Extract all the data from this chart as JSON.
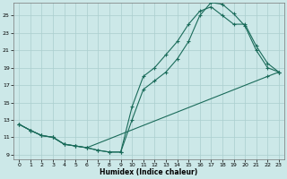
{
  "xlabel": "Humidex (Indice chaleur)",
  "bg_color": "#cce8e8",
  "grid_color": "#aacece",
  "line_color": "#1a6b5a",
  "xlim": [
    -0.5,
    23.5
  ],
  "ylim": [
    8.5,
    26.5
  ],
  "xticks": [
    0,
    1,
    2,
    3,
    4,
    5,
    6,
    7,
    8,
    9,
    10,
    11,
    12,
    13,
    14,
    15,
    16,
    17,
    18,
    19,
    20,
    21,
    22,
    23
  ],
  "yticks": [
    9,
    11,
    13,
    15,
    17,
    19,
    21,
    23,
    25
  ],
  "line1_x": [
    0,
    1,
    2,
    3,
    4,
    5,
    6,
    7,
    8,
    9,
    10,
    11,
    12,
    13,
    14,
    15,
    16,
    17,
    18,
    19,
    20,
    21,
    22,
    23
  ],
  "line1_y": [
    12.5,
    11.8,
    11.2,
    11.0,
    10.2,
    10.0,
    9.8,
    9.5,
    9.3,
    9.3,
    13.0,
    16.5,
    17.5,
    18.5,
    20.0,
    22.0,
    25.0,
    26.5,
    26.3,
    25.2,
    23.8,
    21.0,
    19.0,
    18.5
  ],
  "line2_x": [
    0,
    1,
    2,
    3,
    4,
    5,
    6,
    7,
    8,
    9,
    10,
    11,
    12,
    13,
    14,
    15,
    16,
    17,
    18,
    19,
    20,
    21,
    22,
    23
  ],
  "line2_y": [
    12.5,
    11.8,
    11.2,
    11.0,
    10.2,
    10.0,
    9.8,
    9.5,
    9.3,
    9.3,
    14.5,
    18.0,
    19.0,
    20.5,
    22.0,
    24.0,
    25.5,
    26.0,
    25.0,
    24.0,
    24.0,
    21.5,
    19.5,
    18.5
  ],
  "line3_x": [
    0,
    1,
    2,
    3,
    4,
    5,
    6,
    22,
    23
  ],
  "line3_y": [
    12.5,
    11.8,
    11.2,
    11.0,
    10.2,
    10.0,
    9.8,
    18.0,
    18.5
  ]
}
